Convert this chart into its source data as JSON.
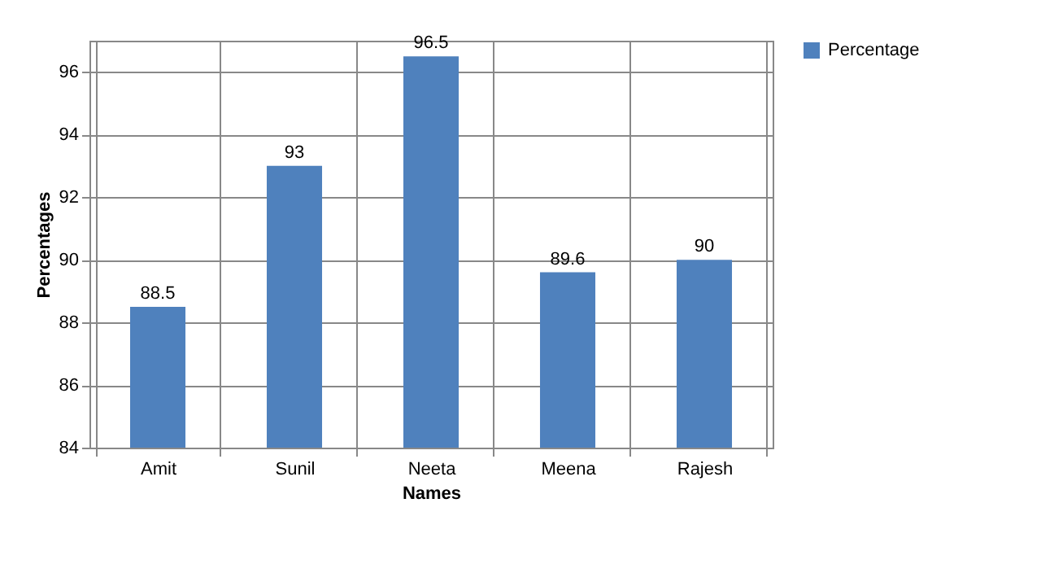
{
  "chart_data": {
    "type": "bar",
    "xlabel": "Names",
    "ylabel": "Percentages",
    "categories": [
      "Amit",
      "Sunil",
      "Neeta",
      "Meena",
      "Rajesh"
    ],
    "series": [
      {
        "name": "Percentage",
        "color": "#4f81bd",
        "values": [
          88.5,
          93,
          96.5,
          89.6,
          90
        ]
      }
    ],
    "ylim": [
      84,
      97
    ],
    "yticks": [
      84,
      86,
      88,
      90,
      92,
      94,
      96
    ],
    "grid": true,
    "legend": "right",
    "data_labels": true
  }
}
